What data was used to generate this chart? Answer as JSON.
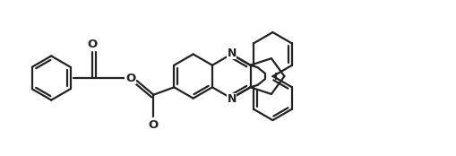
{
  "bg_color": "#ffffff",
  "line_color": "#222222",
  "lw": 1.6,
  "dbo": 0.07,
  "figsize": [
    5.1,
    1.74
  ],
  "dpi": 100,
  "xlim": [
    0,
    10.2
  ],
  "ylim": [
    0,
    3.48
  ]
}
